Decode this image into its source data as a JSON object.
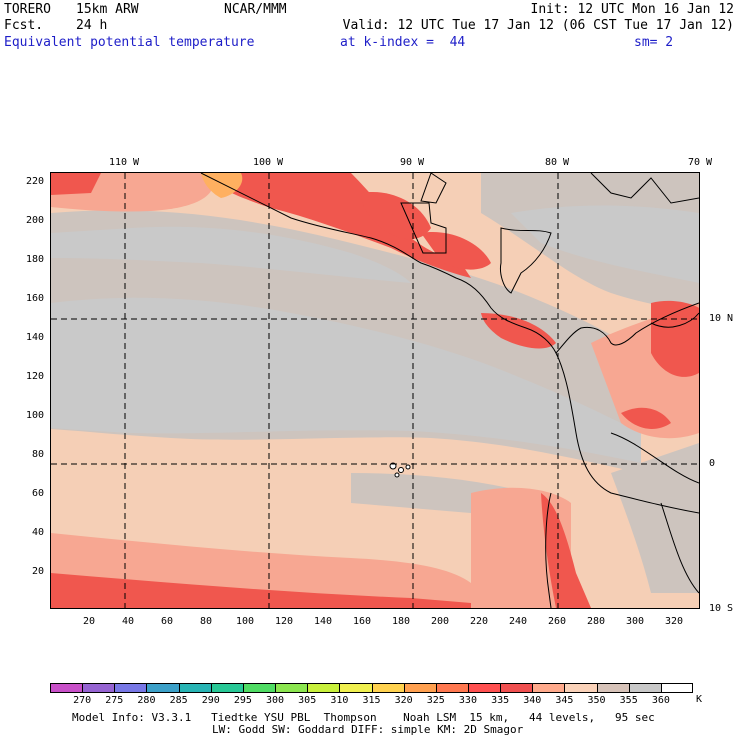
{
  "header": {
    "model": "TORERO",
    "resolution": "15km ARW",
    "institution": "NCAR/MMM",
    "init": "Init: 12 UTC Mon 16 Jan 12",
    "fcst_label": "Fcst.",
    "fcst_hours": "24 h",
    "valid": "Valid: 12 UTC Tue 17 Jan 12 (06 CST Tue 17 Jan 12)",
    "field": "Equivalent potential temperature",
    "level": "at k-index =  44",
    "smoothing": "sm= 2"
  },
  "map": {
    "lon_labels": [
      "110 W",
      "100 W",
      "90 W",
      "80 W",
      "70 W"
    ],
    "lat_labels": [
      "10 N",
      "0",
      "10 S"
    ],
    "y_grid_labels": [
      "220",
      "200",
      "180",
      "160",
      "140",
      "120",
      "100",
      "80",
      "60",
      "40",
      "20"
    ],
    "x_grid_labels": [
      "20",
      "40",
      "60",
      "80",
      "100",
      "120",
      "140",
      "160",
      "180",
      "200",
      "220",
      "240",
      "260",
      "280",
      "300",
      "320"
    ]
  },
  "legend": {
    "ticks": [
      "270",
      "275",
      "280",
      "285",
      "290",
      "295",
      "300",
      "305",
      "310",
      "315",
      "320",
      "325",
      "330",
      "335",
      "340",
      "345",
      "350",
      "355",
      "360"
    ],
    "unit": "K",
    "colors": [
      "#c850c8",
      "#9664d2",
      "#7878e6",
      "#3ca0c8",
      "#28b4b4",
      "#28c896",
      "#50dc64",
      "#8ce650",
      "#c8f03c",
      "#f0f050",
      "#ffd250",
      "#ffa050",
      "#ff7850",
      "#ff5050",
      "#f05050",
      "#ffaa8c",
      "#fad2b9",
      "#d7c3b9",
      "#c8c8c8",
      "#ffffff"
    ]
  },
  "footer": {
    "line1": "Model Info: V3.3.1   Tiedtke YSU PBL  Thompson    Noah LSM  15 km,   44 levels,   95 sec",
    "line2": "LW: Godd SW: Goddard DIFF: simple KM: 2D Smagor"
  }
}
